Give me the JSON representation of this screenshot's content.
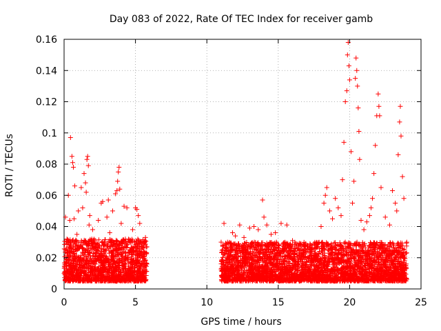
{
  "chart_data": {
    "type": "scatter",
    "title": "Day 083 of 2022, Rate Of TEC Index for receiver gamb",
    "xlabel": "GPS time / hours",
    "ylabel": "ROTI / TECUs",
    "xlim": [
      0,
      25
    ],
    "ylim": [
      0,
      0.16
    ],
    "xticks": [
      0,
      5,
      10,
      15,
      20,
      25
    ],
    "xtick_labels": [
      "0",
      "5",
      "10",
      "15",
      "20",
      "25"
    ],
    "yticks": [
      0,
      0.02,
      0.04,
      0.06,
      0.08,
      0.1,
      0.12,
      0.14,
      0.16
    ],
    "ytick_labels": [
      "0",
      "0.02",
      "0.04",
      "0.06",
      "0.08",
      "0.1",
      "0.12",
      "0.14",
      "0.16"
    ],
    "grid": true,
    "marker": "+",
    "marker_color": "#ff0000",
    "series": [
      {
        "name": "ROTI",
        "points": [
          [
            0.0,
            0.01
          ],
          [
            0.1,
            0.046
          ],
          [
            0.2,
            0.032
          ],
          [
            0.3,
            0.06
          ],
          [
            0.35,
            0.015
          ],
          [
            0.4,
            0.044
          ],
          [
            0.45,
            0.097
          ],
          [
            0.5,
            0.026
          ],
          [
            0.55,
            0.085
          ],
          [
            0.6,
            0.081
          ],
          [
            0.65,
            0.078
          ],
          [
            0.7,
            0.045
          ],
          [
            0.75,
            0.066
          ],
          [
            0.8,
            0.019
          ],
          [
            0.9,
            0.035
          ],
          [
            1.0,
            0.05
          ],
          [
            1.1,
            0.027
          ],
          [
            1.2,
            0.065
          ],
          [
            1.3,
            0.052
          ],
          [
            1.4,
            0.074
          ],
          [
            1.5,
            0.068
          ],
          [
            1.55,
            0.062
          ],
          [
            1.6,
            0.083
          ],
          [
            1.65,
            0.085
          ],
          [
            1.7,
            0.079
          ],
          [
            1.75,
            0.041
          ],
          [
            1.8,
            0.047
          ],
          [
            1.9,
            0.031
          ],
          [
            2.0,
            0.038
          ],
          [
            2.2,
            0.021
          ],
          [
            2.4,
            0.044
          ],
          [
            2.6,
            0.055
          ],
          [
            2.7,
            0.056
          ],
          [
            2.8,
            0.03
          ],
          [
            3.0,
            0.046
          ],
          [
            3.1,
            0.057
          ],
          [
            3.2,
            0.036
          ],
          [
            3.4,
            0.05
          ],
          [
            3.6,
            0.061
          ],
          [
            3.7,
            0.063
          ],
          [
            3.75,
            0.069
          ],
          [
            3.8,
            0.075
          ],
          [
            3.85,
            0.078
          ],
          [
            3.9,
            0.064
          ],
          [
            4.0,
            0.042
          ],
          [
            4.2,
            0.053
          ],
          [
            4.4,
            0.052
          ],
          [
            4.6,
            0.025
          ],
          [
            4.8,
            0.038
          ],
          [
            5.0,
            0.052
          ],
          [
            5.1,
            0.051
          ],
          [
            5.2,
            0.047
          ],
          [
            5.3,
            0.042
          ],
          [
            5.5,
            0.03
          ],
          [
            5.7,
            0.033
          ],
          [
            5.8,
            0.016
          ],
          [
            11.0,
            0.03
          ],
          [
            11.2,
            0.042
          ],
          [
            11.5,
            0.029
          ],
          [
            11.8,
            0.036
          ],
          [
            12.0,
            0.034
          ],
          [
            12.3,
            0.041
          ],
          [
            12.6,
            0.033
          ],
          [
            13.0,
            0.039
          ],
          [
            13.3,
            0.04
          ],
          [
            13.6,
            0.038
          ],
          [
            13.9,
            0.057
          ],
          [
            14.0,
            0.046
          ],
          [
            14.2,
            0.041
          ],
          [
            14.5,
            0.035
          ],
          [
            14.8,
            0.036
          ],
          [
            15.2,
            0.042
          ],
          [
            15.6,
            0.041
          ],
          [
            16.0,
            0.031
          ],
          [
            16.5,
            0.025
          ],
          [
            17.0,
            0.024
          ],
          [
            17.5,
            0.029
          ],
          [
            18.0,
            0.04
          ],
          [
            18.2,
            0.055
          ],
          [
            18.3,
            0.06
          ],
          [
            18.4,
            0.065
          ],
          [
            18.6,
            0.05
          ],
          [
            18.8,
            0.045
          ],
          [
            19.0,
            0.058
          ],
          [
            19.2,
            0.052
          ],
          [
            19.4,
            0.047
          ],
          [
            19.5,
            0.07
          ],
          [
            19.6,
            0.094
          ],
          [
            19.7,
            0.12
          ],
          [
            19.8,
            0.127
          ],
          [
            19.85,
            0.15
          ],
          [
            19.9,
            0.158
          ],
          [
            19.95,
            0.143
          ],
          [
            20.0,
            0.134
          ],
          [
            20.1,
            0.088
          ],
          [
            20.2,
            0.055
          ],
          [
            20.3,
            0.069
          ],
          [
            20.4,
            0.135
          ],
          [
            20.45,
            0.148
          ],
          [
            20.5,
            0.14
          ],
          [
            20.55,
            0.13
          ],
          [
            20.6,
            0.116
          ],
          [
            20.65,
            0.101
          ],
          [
            20.7,
            0.083
          ],
          [
            20.8,
            0.044
          ],
          [
            21.0,
            0.038
          ],
          [
            21.2,
            0.043
          ],
          [
            21.4,
            0.047
          ],
          [
            21.5,
            0.052
          ],
          [
            21.6,
            0.058
          ],
          [
            21.7,
            0.074
          ],
          [
            21.8,
            0.092
          ],
          [
            21.9,
            0.111
          ],
          [
            22.0,
            0.125
          ],
          [
            22.05,
            0.117
          ],
          [
            22.1,
            0.111
          ],
          [
            22.2,
            0.065
          ],
          [
            22.5,
            0.046
          ],
          [
            22.8,
            0.041
          ],
          [
            23.0,
            0.063
          ],
          [
            23.2,
            0.055
          ],
          [
            23.3,
            0.05
          ],
          [
            23.4,
            0.086
          ],
          [
            23.5,
            0.107
          ],
          [
            23.55,
            0.117
          ],
          [
            23.6,
            0.098
          ],
          [
            23.7,
            0.072
          ],
          [
            23.8,
            0.058
          ],
          [
            24.0,
            0.03
          ]
        ],
        "dense_bands": [
          {
            "x_start": 0.0,
            "x_end": 5.8,
            "y_min": 0.005,
            "y_max": 0.032
          },
          {
            "x_start": 11.0,
            "x_end": 24.0,
            "y_min": 0.005,
            "y_max": 0.03
          }
        ]
      }
    ]
  }
}
